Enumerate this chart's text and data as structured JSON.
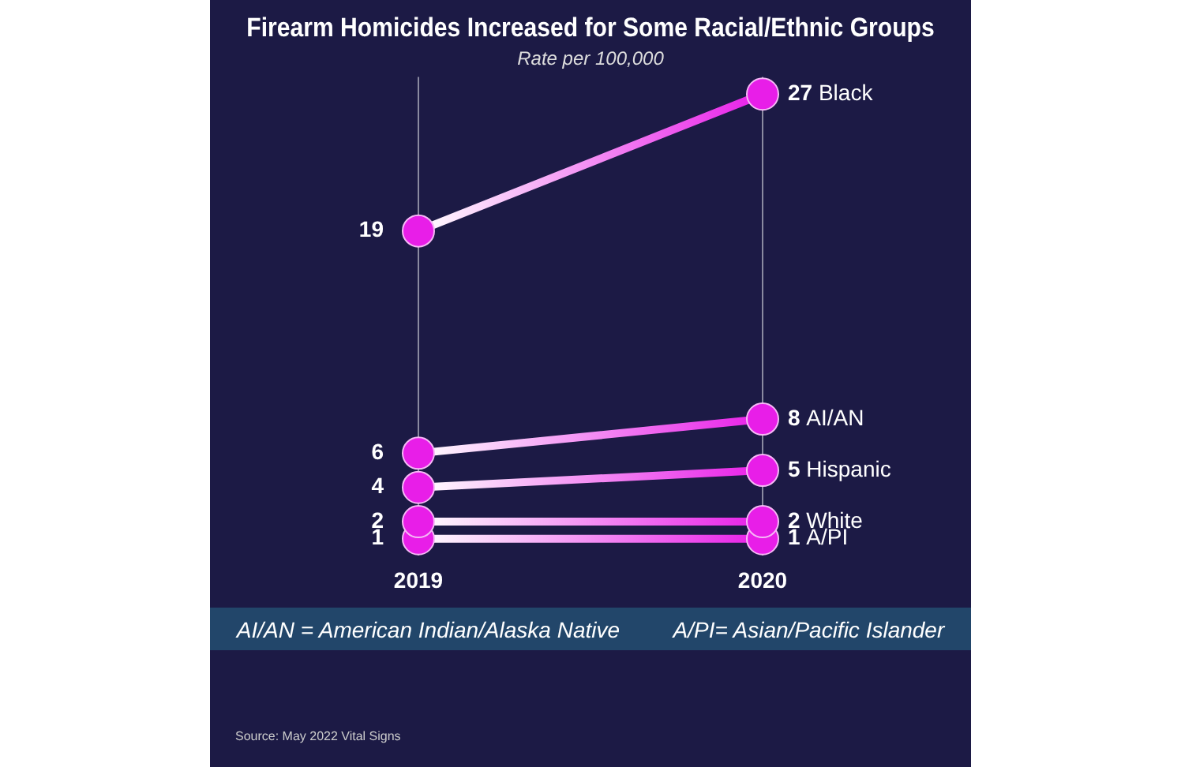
{
  "chart_data": {
    "type": "line",
    "title": "Firearm Homicides Increased for Some Racial/Ethnic Groups",
    "subtitle": "Rate per 100,000",
    "categories": [
      "2019",
      "2020"
    ],
    "series": [
      {
        "name": "Black",
        "color": "#e81ee8",
        "values": [
          19,
          27
        ]
      },
      {
        "name": "AI/AN",
        "color": "#e81ee8",
        "values": [
          6,
          8
        ]
      },
      {
        "name": "Hispanic",
        "color": "#e81ee8",
        "values": [
          4,
          5
        ]
      },
      {
        "name": "White",
        "color": "#e81ee8",
        "values": [
          2,
          2
        ]
      },
      {
        "name": "A/PI",
        "color": "#e81ee8",
        "values": [
          1,
          1
        ]
      }
    ],
    "ylim": [
      0,
      28
    ],
    "tick_labels": "x",
    "grid": "x",
    "legend": false,
    "marker": "circle",
    "line_style": "solid",
    "data_labels": true,
    "annotations": [
      "AI/AN = American Indian/Alaska Native",
      "A/PI= Asian/Pacific Islander",
      "Source: May 2022 Vital Signs"
    ]
  }
}
